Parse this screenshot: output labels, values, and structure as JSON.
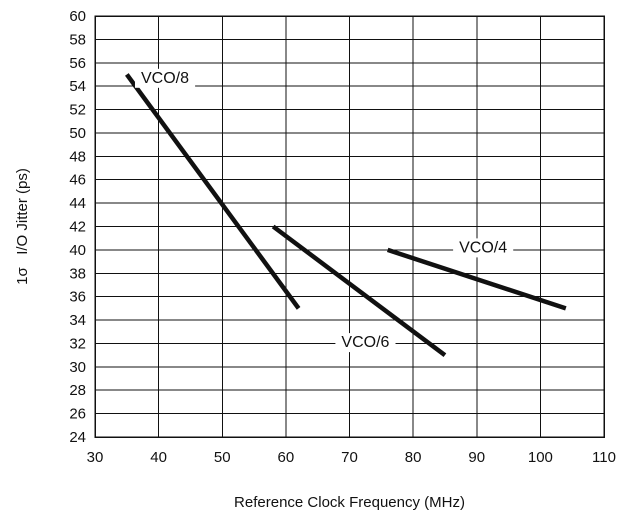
{
  "chart_data": {
    "type": "line",
    "title": "",
    "xlabel": "Reference Clock Frequency (MHz)",
    "ylabel": "1σ   I/O Jitter (ps)",
    "xlim": [
      30,
      110
    ],
    "ylim": [
      24,
      60
    ],
    "x_ticks": [
      30,
      40,
      50,
      60,
      70,
      80,
      90,
      100,
      110
    ],
    "y_ticks": [
      24,
      26,
      28,
      30,
      32,
      34,
      36,
      38,
      40,
      42,
      44,
      46,
      48,
      50,
      52,
      54,
      56,
      58,
      60
    ],
    "grid": true,
    "line_color": "#111111",
    "series": [
      {
        "name": "VCO/8",
        "points": [
          [
            35,
            55
          ],
          [
            62,
            35
          ]
        ],
        "label_at": [
          41,
          54.8
        ]
      },
      {
        "name": "VCO/6",
        "points": [
          [
            58,
            42
          ],
          [
            85,
            31
          ]
        ],
        "label_at": [
          72.5,
          32.2
        ]
      },
      {
        "name": "VCO/4",
        "points": [
          [
            76,
            40
          ],
          [
            104,
            35
          ]
        ],
        "label_at": [
          91,
          40.3
        ]
      }
    ]
  }
}
